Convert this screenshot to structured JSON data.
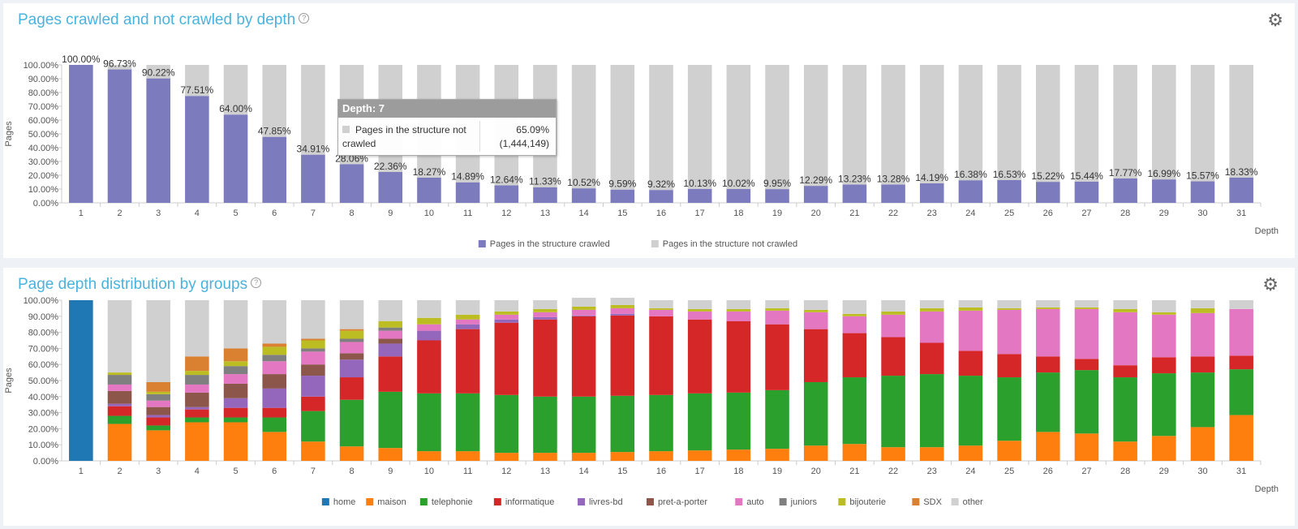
{
  "panels": [
    {
      "title": "Pages crawled and not crawled by depth",
      "help": "?",
      "settings_icon": "gear-icon"
    },
    {
      "title": "Page depth distribution by groups",
      "help": "?",
      "settings_icon": "gear-icon"
    }
  ],
  "tooltip": {
    "header": "Depth: 7",
    "label": "Pages in the structure not crawled",
    "percent": "65.09%",
    "count": "(1,444,149)",
    "swatch_color": "#d0d0d0"
  },
  "chart_data": [
    {
      "type": "bar",
      "stacked": true,
      "xlabel": "Depth",
      "ylabel": "Pages",
      "ylim": [
        0,
        100
      ],
      "yticks": [
        "0.00%",
        "10.00%",
        "20.00%",
        "30.00%",
        "40.00%",
        "50.00%",
        "60.00%",
        "70.00%",
        "80.00%",
        "90.00%",
        "100.00%"
      ],
      "categories": [
        "1",
        "2",
        "3",
        "4",
        "5",
        "6",
        "7",
        "8",
        "9",
        "10",
        "11",
        "12",
        "13",
        "14",
        "15",
        "16",
        "17",
        "18",
        "19",
        "20",
        "21",
        "22",
        "23",
        "24",
        "25",
        "26",
        "27",
        "28",
        "29",
        "30",
        "31"
      ],
      "series": [
        {
          "name": "Pages in the structure crawled",
          "color": "#7b7bbd",
          "values": [
            100.0,
            96.73,
            90.22,
            77.51,
            64.0,
            47.85,
            34.91,
            28.06,
            22.36,
            18.27,
            14.89,
            12.64,
            11.33,
            10.52,
            9.59,
            9.32,
            10.13,
            10.02,
            9.95,
            12.29,
            13.23,
            13.28,
            14.19,
            16.38,
            16.53,
            15.22,
            15.44,
            17.77,
            16.99,
            15.57,
            18.33
          ]
        },
        {
          "name": "Pages in the structure not crawled",
          "color": "#d0d0d0",
          "values": [
            0.0,
            3.27,
            9.78,
            22.49,
            36.0,
            52.15,
            65.09,
            71.94,
            77.64,
            81.73,
            85.11,
            87.36,
            88.67,
            89.48,
            90.41,
            90.68,
            89.87,
            89.98,
            90.05,
            87.71,
            86.77,
            86.72,
            85.81,
            83.62,
            83.47,
            84.78,
            84.56,
            82.23,
            83.01,
            84.43,
            81.67
          ]
        }
      ],
      "data_labels": [
        "100.00%",
        "96.73%",
        "90.22%",
        "77.51%",
        "64.00%",
        "47.85%",
        "34.91%",
        "28.06%",
        "22.36%",
        "18.27%",
        "14.89%",
        "12.64%",
        "11.33%",
        "10.52%",
        "9.59%",
        "9.32%",
        "10.13%",
        "10.02%",
        "9.95%",
        "12.29%",
        "13.23%",
        "13.28%",
        "14.19%",
        "16.38%",
        "16.53%",
        "15.22%",
        "15.44%",
        "17.77%",
        "16.99%",
        "15.57%",
        "18.33%"
      ],
      "legend_position": "bottom"
    },
    {
      "type": "bar",
      "stacked": true,
      "xlabel": "Depth",
      "ylabel": "Pages",
      "ylim": [
        0,
        100
      ],
      "yticks": [
        "0.00%",
        "10.00%",
        "20.00%",
        "30.00%",
        "40.00%",
        "50.00%",
        "60.00%",
        "70.00%",
        "80.00%",
        "90.00%",
        "100.00%"
      ],
      "categories": [
        "1",
        "2",
        "3",
        "4",
        "5",
        "6",
        "7",
        "8",
        "9",
        "10",
        "11",
        "12",
        "13",
        "14",
        "15",
        "16",
        "17",
        "18",
        "19",
        "20",
        "21",
        "22",
        "23",
        "24",
        "25",
        "26",
        "27",
        "28",
        "29",
        "30",
        "31"
      ],
      "series": [
        {
          "name": "home",
          "color": "#1f77b4",
          "values": [
            100,
            0,
            0,
            0,
            0,
            0,
            0,
            0,
            0,
            0,
            0,
            0,
            0,
            0,
            0,
            0,
            0,
            0,
            0,
            0,
            0,
            0,
            0,
            0,
            0,
            0,
            0,
            0,
            0,
            0,
            0
          ]
        },
        {
          "name": "maison",
          "color": "#ff7f0e",
          "values": [
            0,
            23,
            19,
            24,
            24,
            18,
            12,
            9,
            8,
            6,
            6,
            5,
            5,
            5,
            5.5,
            6,
            6.5,
            7,
            7.5,
            9.5,
            10.5,
            8.5,
            8.5,
            9.5,
            12.5,
            18,
            17,
            12,
            15.5,
            21,
            28.5
          ]
        },
        {
          "name": "telephonie",
          "color": "#2ca02c",
          "values": [
            0,
            5,
            3,
            3,
            3,
            9,
            19,
            29,
            35,
            36,
            36,
            36,
            35,
            35,
            35,
            35,
            35.5,
            35.5,
            36.5,
            39.5,
            41.5,
            44.5,
            45.5,
            43.5,
            39.5,
            37,
            39.5,
            40,
            39,
            34,
            28.5
          ]
        },
        {
          "name": "informatique",
          "color": "#d62728",
          "values": [
            0,
            6,
            5,
            5,
            6,
            6,
            9,
            14,
            22,
            33,
            40,
            45,
            48,
            50,
            50,
            49,
            46,
            44.5,
            41,
            33,
            27.5,
            24,
            19.5,
            15.5,
            14.5,
            10,
            7,
            7.5,
            10,
            10,
            8.5
          ]
        },
        {
          "name": "livres-bd",
          "color": "#9467bd",
          "values": [
            0,
            1.5,
            1.5,
            1.5,
            6,
            12,
            13,
            11,
            8,
            6,
            3,
            2,
            1.5,
            0.5,
            1,
            0,
            0,
            0,
            0,
            0,
            0,
            0,
            0,
            0,
            0,
            0,
            0,
            0,
            0,
            0,
            0
          ]
        },
        {
          "name": "pret-a-porter",
          "color": "#8c564b",
          "values": [
            0,
            8,
            5,
            9,
            9,
            9,
            7,
            4,
            3,
            0,
            0,
            0,
            0,
            0,
            0,
            0,
            0,
            0,
            0,
            0,
            0,
            0,
            0,
            0,
            0,
            0,
            0,
            0,
            0,
            0,
            0
          ]
        },
        {
          "name": "auto",
          "color": "#e377c2",
          "values": [
            0,
            4,
            4,
            5,
            6,
            8,
            8,
            7,
            5,
            4,
            3,
            3,
            3,
            3.5,
            3.5,
            4,
            5,
            6,
            8.5,
            10.5,
            10.5,
            14,
            19.5,
            25,
            27.5,
            29.5,
            31,
            33,
            26.5,
            27,
            29
          ]
        },
        {
          "name": "juniors",
          "color": "#7f7f7f",
          "values": [
            0,
            6,
            4,
            6,
            5,
            4,
            2,
            2,
            2,
            0,
            0,
            0,
            0,
            0,
            0,
            0,
            0,
            0,
            0,
            0,
            0,
            0,
            0,
            0,
            0,
            0,
            0,
            0,
            0,
            0,
            0
          ]
        },
        {
          "name": "bijouterie",
          "color": "#bcbd22",
          "values": [
            0,
            1.5,
            1.5,
            2.5,
            3,
            5,
            5,
            5,
            4,
            4,
            3,
            2,
            2,
            2,
            2,
            1,
            1.5,
            1.5,
            1.5,
            1.5,
            1.5,
            2,
            2,
            2,
            1,
            1,
            1,
            2,
            1.5,
            3,
            0
          ]
        },
        {
          "name": "SDX",
          "color": "#d98130",
          "values": [
            0,
            0,
            6,
            9,
            8,
            2,
            1,
            1,
            0,
            0,
            0,
            0,
            0,
            0,
            0,
            0,
            0,
            0,
            0,
            0,
            0,
            0,
            0,
            0,
            0,
            0,
            0,
            0,
            0,
            0,
            0
          ]
        },
        {
          "name": "other",
          "color": "#d0d0d0",
          "values": [
            0,
            45,
            51,
            35,
            30,
            27,
            24,
            18,
            13,
            11,
            9,
            7,
            5.5,
            5.5,
            4.5,
            5,
            5.5,
            5.5,
            5,
            6,
            8.5,
            7,
            5,
            4.5,
            5,
            4.5,
            4.5,
            5.5,
            7.5,
            5,
            5.5
          ]
        }
      ],
      "legend_position": "bottom"
    }
  ]
}
